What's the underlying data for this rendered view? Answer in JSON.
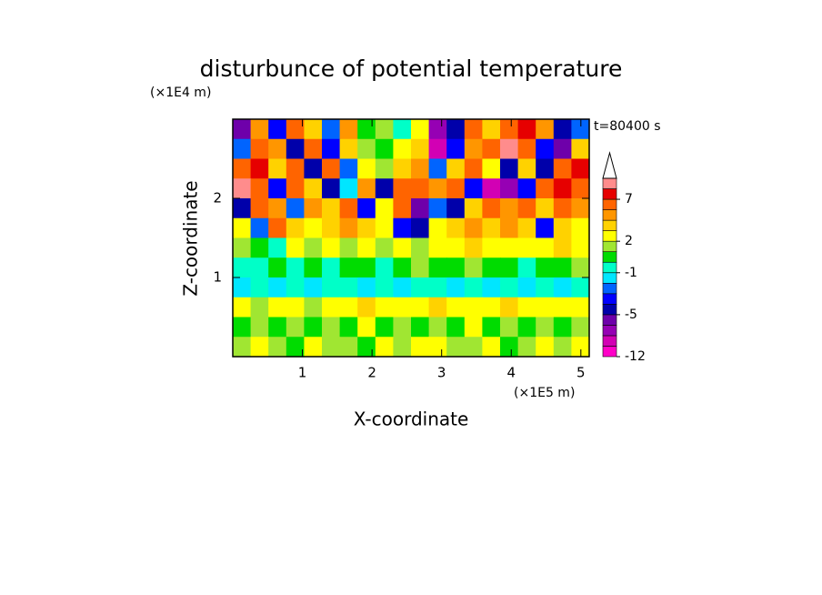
{
  "chart_data": {
    "type": "contourf",
    "title": "disturbunce of potential temperature",
    "y_unit": "(×1E4 m)",
    "x_unit": "(×1E5 m)",
    "annotation": "t=80400 s",
    "x_label": "X-coordinate",
    "y_label": "Z-coordinate",
    "xlim": [
      0,
      5.12
    ],
    "ylim": [
      0,
      3
    ],
    "xticks": [
      1,
      2,
      3,
      4,
      5
    ],
    "yticks": [
      1,
      2
    ],
    "z": [
      [
        -6,
        4,
        -4,
        5,
        3,
        -3,
        4,
        0,
        1,
        -1,
        2,
        -8,
        -5,
        5,
        3,
        6,
        8,
        4,
        -5,
        -3
      ],
      [
        -3,
        6,
        4,
        -5,
        6,
        -4,
        3,
        1,
        0,
        2,
        3,
        -9,
        -4,
        4,
        5,
        9,
        5,
        -4,
        -6,
        3
      ],
      [
        5,
        8,
        3,
        6,
        -5,
        5,
        -3,
        2,
        1,
        3,
        4,
        -3,
        3,
        5,
        2,
        -5,
        3,
        -5,
        6,
        8
      ],
      [
        9,
        5,
        -4,
        5,
        3,
        -5,
        -2,
        4,
        -5,
        5,
        6,
        4,
        5,
        -4,
        -9,
        -8,
        -4,
        5,
        8,
        6
      ],
      [
        -5,
        5,
        4,
        -3,
        4,
        3,
        5,
        -4,
        2,
        5,
        -6,
        -3,
        -5,
        3,
        5,
        4,
        6,
        3,
        5,
        4
      ],
      [
        2,
        -3,
        5,
        3,
        2,
        3,
        4,
        3,
        2,
        -4,
        -5,
        2,
        3,
        4,
        3,
        4,
        3,
        -4,
        3,
        2
      ],
      [
        1,
        0,
        -1,
        2,
        1,
        2,
        1,
        2,
        1,
        2,
        1,
        2,
        2,
        3,
        2,
        2,
        2,
        2,
        3,
        2
      ],
      [
        -1,
        -1,
        0,
        -1,
        0,
        -1,
        0,
        0,
        -1,
        0,
        1,
        0,
        0,
        1,
        0,
        0,
        -1,
        0,
        0,
        1
      ],
      [
        -2,
        -1,
        -2,
        -1,
        -2,
        -1,
        -1,
        -2,
        -1,
        -2,
        -1,
        -1,
        -2,
        -1,
        -2,
        -1,
        -2,
        -1,
        -2,
        -1
      ],
      [
        2,
        1,
        2,
        2,
        1,
        2,
        2,
        3,
        2,
        2,
        2,
        3,
        2,
        2,
        2,
        3,
        2,
        2,
        2,
        2
      ],
      [
        0,
        1,
        0,
        1,
        0,
        1,
        0,
        2,
        0,
        1,
        0,
        1,
        0,
        2,
        0,
        1,
        0,
        1,
        0,
        1
      ],
      [
        1,
        2,
        1,
        0,
        2,
        1,
        1,
        0,
        2,
        1,
        2,
        2,
        1,
        1,
        2,
        0,
        1,
        2,
        1,
        2
      ]
    ],
    "levels": [
      -12,
      -10,
      -8,
      -6,
      -5,
      -4,
      -3,
      -2,
      -1,
      0,
      1,
      2,
      3,
      4,
      5,
      7,
      9,
      11
    ],
    "colors": [
      "#ff00c8",
      "#d200b4",
      "#9600b4",
      "#6e00aa",
      "#0000aa",
      "#0000ff",
      "#0064ff",
      "#00e6ff",
      "#00ffc8",
      "#00dc00",
      "#a0e632",
      "#ffff00",
      "#ffd200",
      "#ff9600",
      "#ff6400",
      "#e60000",
      "#ff8c8c"
    ],
    "extend_color": "#ffffff",
    "colorbar_ticks": [
      -12,
      -5,
      -1,
      2,
      7
    ]
  }
}
